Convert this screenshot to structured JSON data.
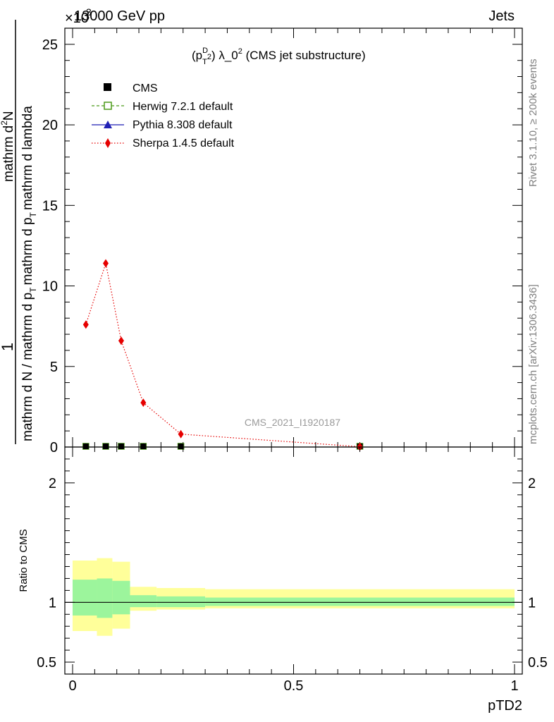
{
  "header": {
    "energy_label": "13000 GeV pp",
    "scale_label": "×10",
    "scale_exponent": "3",
    "process_label": "Jets"
  },
  "side_labels": {
    "rivet": "Rivet 3.1.10, ≥ 200k events",
    "mcplots": "mcplots.cern.ch [arXiv:1306.3436]"
  },
  "watermark": "CMS_2021_I1920187",
  "chart_data": [
    {
      "type": "line",
      "title_parts": {
        "p": "(p",
        "sup": "D",
        "sub": "T",
        "pow": "2",
        "rest": ") λ_0",
        "pow2": "2",
        "tail": " (CMS jet substructure)"
      },
      "ylabel": {
        "numerator_one": "1",
        "denominator": "mathrm d N / mathrm d p_T mathrm d p_T mathrm d lambda",
        "top_text": "mathrm d²N",
        "den_part1": "mathrm d N / mathrm d p",
        "den_part2": "mathrm d p",
        "den_part3": "mathrm d lambda",
        "den_sub": "T",
        "den_sub2": "T",
        "num_part": "mathrm d",
        "num_sup": "2",
        "num_tail": "N"
      },
      "xlim": [
        0,
        1
      ],
      "ylim": [
        0,
        26
      ],
      "yticks": [
        0,
        5,
        10,
        15,
        20,
        25
      ],
      "ytick_labels": [
        "0",
        "5",
        "10",
        "15",
        "20",
        "25"
      ],
      "legend": {
        "position": "top-left",
        "entries": [
          "CMS",
          "Herwig 7.2.1 default",
          "Pythia 8.308 default",
          "Sherpa 1.4.5 default"
        ]
      },
      "series": [
        {
          "name": "CMS",
          "color": "#000000",
          "x": [
            0.03,
            0.075,
            0.11,
            0.16,
            0.245,
            0.65
          ],
          "y": [
            0.0,
            0.0,
            0.0,
            0.0,
            0.0,
            0.0
          ]
        },
        {
          "name": "Herwig 7.2.1 default",
          "color": "#4c9a19",
          "x": [
            0.03,
            0.075,
            0.11,
            0.16,
            0.245,
            0.65
          ],
          "y": [
            0.0,
            0.0,
            0.0,
            0.0,
            0.0,
            0.0
          ]
        },
        {
          "name": "Pythia 8.308 default",
          "color": "#1f1fb4",
          "x": [
            0.03,
            0.075,
            0.11,
            0.16,
            0.245,
            0.65
          ],
          "y": [
            0.0,
            0.0,
            0.0,
            0.0,
            0.0,
            0.0
          ]
        },
        {
          "name": "Sherpa 1.4.5 default",
          "color": "#e60000",
          "x": [
            0.03,
            0.075,
            0.11,
            0.16,
            0.245,
            0.65
          ],
          "y": [
            7.6,
            11.4,
            6.6,
            2.75,
            0.8,
            0.02
          ]
        }
      ]
    },
    {
      "type": "area",
      "ylabel": "Ratio to CMS",
      "xlabel": "pTD2",
      "xlim": [
        0,
        1
      ],
      "ylim": [
        0.4,
        2.3
      ],
      "xticks": [
        0,
        0.5,
        1
      ],
      "xtick_labels": [
        "0",
        "0.5",
        "1"
      ],
      "yticks": [
        0.5,
        1,
        2
      ],
      "ytick_labels": [
        "0.5",
        "1",
        "2"
      ],
      "reference": 1,
      "bins": [
        {
          "x0": 0.0,
          "x1": 0.055,
          "inner": [
            0.89,
            1.19
          ],
          "outer": [
            0.76,
            1.35
          ]
        },
        {
          "x0": 0.055,
          "x1": 0.09,
          "inner": [
            0.87,
            1.2
          ],
          "outer": [
            0.72,
            1.37
          ]
        },
        {
          "x0": 0.09,
          "x1": 0.13,
          "inner": [
            0.9,
            1.18
          ],
          "outer": [
            0.78,
            1.34
          ]
        },
        {
          "x0": 0.13,
          "x1": 0.19,
          "inner": [
            0.96,
            1.06
          ],
          "outer": [
            0.93,
            1.13
          ]
        },
        {
          "x0": 0.19,
          "x1": 0.3,
          "inner": [
            0.96,
            1.05
          ],
          "outer": [
            0.94,
            1.12
          ]
        },
        {
          "x0": 0.3,
          "x1": 1.0,
          "inner": [
            0.97,
            1.04
          ],
          "outer": [
            0.95,
            1.11
          ]
        }
      ],
      "band_colors": {
        "inner": "#9cf59c",
        "outer": "#ffff9a"
      }
    }
  ]
}
